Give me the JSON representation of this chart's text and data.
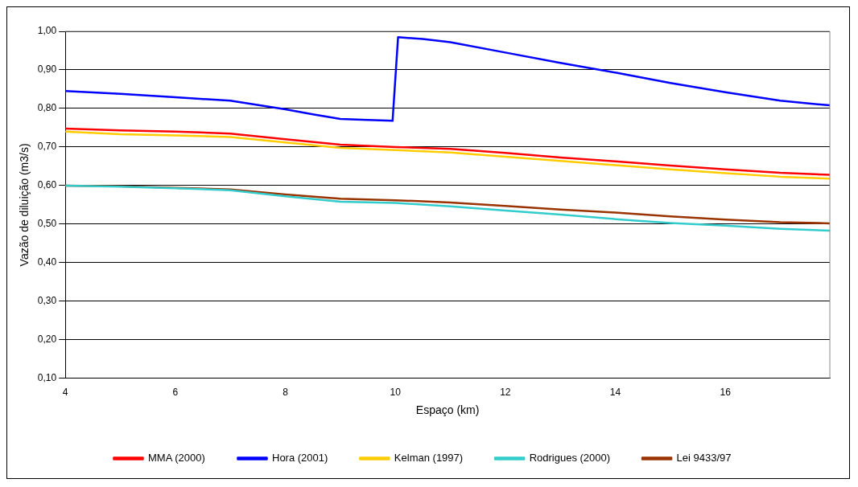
{
  "chart_data": {
    "type": "line",
    "xlabel": "Espaço (km)",
    "ylabel": "Vazão de diluição (m3/s)",
    "xlim": [
      4,
      17.9
    ],
    "xticks": [
      4,
      6,
      8,
      10,
      12,
      14,
      16
    ],
    "ylim": [
      0.1,
      1.0
    ],
    "yticks": [
      {
        "value": 0.1,
        "label": "0,10"
      },
      {
        "value": 0.2,
        "label": "0,20"
      },
      {
        "value": 0.3,
        "label": "0,30"
      },
      {
        "value": 0.4,
        "label": "0,40"
      },
      {
        "value": 0.5,
        "label": "0,50"
      },
      {
        "value": 0.6,
        "label": "0,60"
      },
      {
        "value": 0.7,
        "label": "0,70"
      },
      {
        "value": 0.8,
        "label": "0,80"
      },
      {
        "value": 0.9,
        "label": "0,90"
      },
      {
        "value": 1.0,
        "label": "1,00"
      }
    ],
    "grid": "y",
    "legend": "bottom",
    "marker": "none",
    "line_style": "solid",
    "series": [
      {
        "name": "MMA (2000)",
        "color": "#ff0000",
        "x": [
          4,
          5,
          6,
          7,
          8,
          9,
          10,
          11,
          12,
          13,
          14,
          15,
          16,
          17,
          17.9
        ],
        "values": [
          0.748,
          0.743,
          0.74,
          0.735,
          0.72,
          0.706,
          0.7,
          0.695,
          0.685,
          0.673,
          0.663,
          0.652,
          0.642,
          0.633,
          0.628
        ]
      },
      {
        "name": "Hora (2001)",
        "color": "#0000ff",
        "x": [
          4,
          5,
          6,
          7,
          8,
          8.5,
          9,
          9.5,
          9.95,
          10.05,
          10.5,
          11,
          12,
          13,
          14,
          15,
          16,
          17,
          17.9
        ],
        "values": [
          0.845,
          0.838,
          0.829,
          0.82,
          0.798,
          0.785,
          0.773,
          0.77,
          0.768,
          0.985,
          0.98,
          0.972,
          0.945,
          0.918,
          0.893,
          0.866,
          0.842,
          0.82,
          0.808
        ]
      },
      {
        "name": "Kelman (1997)",
        "color": "#ffcc00",
        "x": [
          4,
          5,
          6,
          7,
          8,
          9,
          10,
          11,
          12,
          13,
          14,
          15,
          16,
          17,
          17.9
        ],
        "values": [
          0.74,
          0.733,
          0.73,
          0.726,
          0.712,
          0.698,
          0.692,
          0.686,
          0.675,
          0.664,
          0.653,
          0.642,
          0.632,
          0.623,
          0.618
        ]
      },
      {
        "name": "Rodrigues (2000)",
        "color": "#33cccc",
        "x": [
          4,
          5,
          6,
          7,
          8,
          9,
          10,
          11,
          12,
          13,
          14,
          15,
          16,
          17,
          17.9
        ],
        "values": [
          0.6,
          0.597,
          0.593,
          0.588,
          0.572,
          0.558,
          0.555,
          0.546,
          0.535,
          0.525,
          0.513,
          0.503,
          0.496,
          0.488,
          0.483
        ]
      },
      {
        "name": "Lei 9433/97",
        "color": "#993300",
        "x": [
          4,
          5,
          6,
          7,
          8,
          9,
          10,
          11,
          12,
          13,
          14,
          15,
          16,
          17,
          17.9
        ],
        "values": [
          0.6,
          0.598,
          0.594,
          0.59,
          0.577,
          0.566,
          0.562,
          0.556,
          0.547,
          0.538,
          0.53,
          0.52,
          0.512,
          0.505,
          0.502
        ]
      }
    ]
  }
}
